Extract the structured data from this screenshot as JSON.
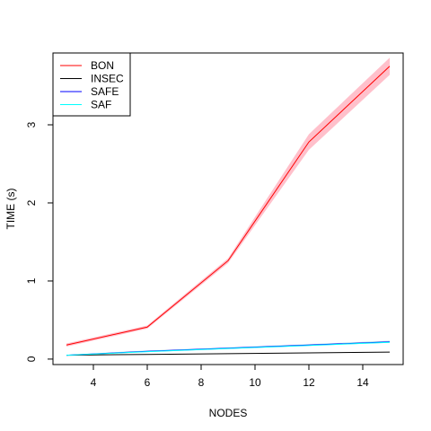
{
  "chart_data": {
    "type": "line",
    "title": "",
    "xlabel": "NODES",
    "ylabel": "TIME (s)",
    "xlim": [
      2.5,
      15.5
    ],
    "ylim": [
      -0.07,
      3.92
    ],
    "xticks": [
      4,
      6,
      8,
      10,
      12,
      14
    ],
    "yticks": [
      0,
      1,
      2,
      3
    ],
    "grid": false,
    "legend_position": "top-left",
    "x": [
      3,
      6,
      9,
      12,
      15
    ],
    "series": [
      {
        "name": "BON",
        "color": "#FF0000",
        "band_color": "#FFC0CB",
        "values": [
          0.18,
          0.41,
          1.26,
          2.78,
          3.75
        ],
        "lower": [
          0.16,
          0.39,
          1.23,
          2.68,
          3.64
        ],
        "upper": [
          0.2,
          0.43,
          1.29,
          2.88,
          3.86
        ]
      },
      {
        "name": "INSEC",
        "color": "#000000",
        "values": [
          0.05,
          0.06,
          0.07,
          0.08,
          0.09
        ]
      },
      {
        "name": "SAFE",
        "color": "#0000FF",
        "band_color": "#ADD8E6",
        "values": [
          0.05,
          0.1,
          0.14,
          0.18,
          0.22
        ],
        "lower": [
          0.045,
          0.09,
          0.13,
          0.17,
          0.21
        ],
        "upper": [
          0.055,
          0.11,
          0.15,
          0.19,
          0.235
        ]
      },
      {
        "name": "SAF",
        "color": "#00FFFF",
        "values": [
          0.05,
          0.095,
          0.135,
          0.175,
          0.215
        ]
      }
    ]
  }
}
